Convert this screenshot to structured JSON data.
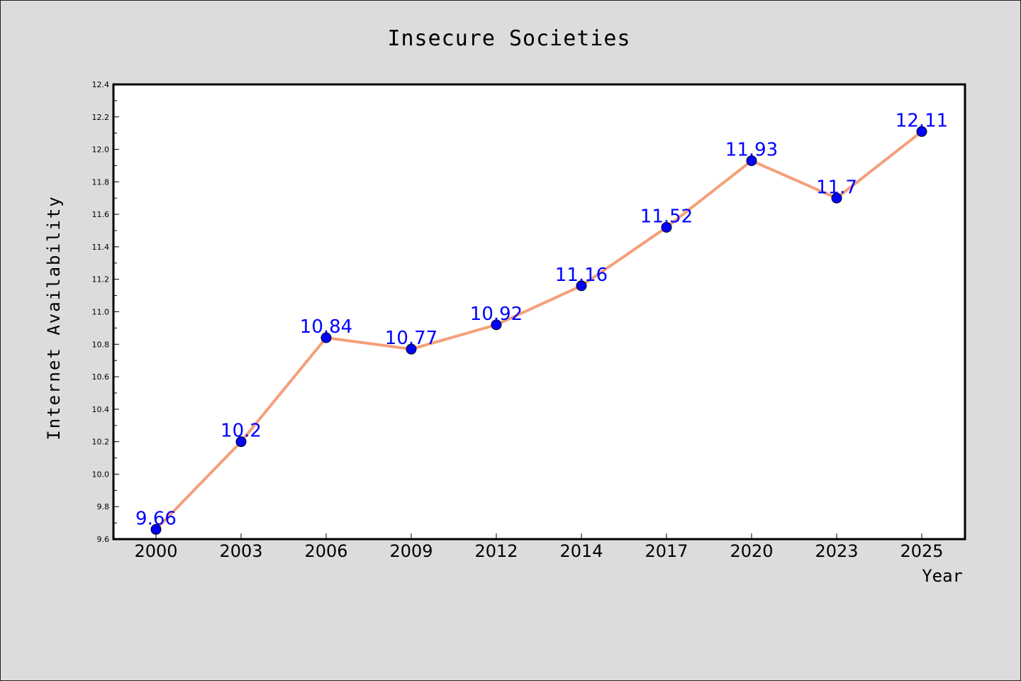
{
  "chart_data": {
    "type": "line",
    "title": "Insecure Societies",
    "xlabel": "Year",
    "ylabel": "Internet Availability",
    "categories": [
      "2000",
      "2003",
      "2006",
      "2009",
      "2012",
      "2014",
      "2017",
      "2020",
      "2023",
      "2025"
    ],
    "values": [
      9.66,
      10.2,
      10.84,
      10.77,
      10.92,
      11.16,
      11.52,
      11.93,
      11.7,
      12.11
    ],
    "data_labels": [
      "9.66",
      "10.2",
      "10.84",
      "10.77",
      "10.92",
      "11.16",
      "11.52",
      "11.93",
      "11.7",
      "12.11"
    ],
    "ylim": [
      9.6,
      12.4
    ],
    "yticks": [
      "9.6",
      "9.8",
      "10.0",
      "10.2",
      "10.4",
      "10.6",
      "10.8",
      "11.0",
      "11.2",
      "11.4",
      "11.6",
      "11.8",
      "12.0",
      "12.2",
      "12.4"
    ],
    "grid": false,
    "line_color": "#f4a07a",
    "marker_color": "#0000ff",
    "label_color": "#0000ff"
  }
}
